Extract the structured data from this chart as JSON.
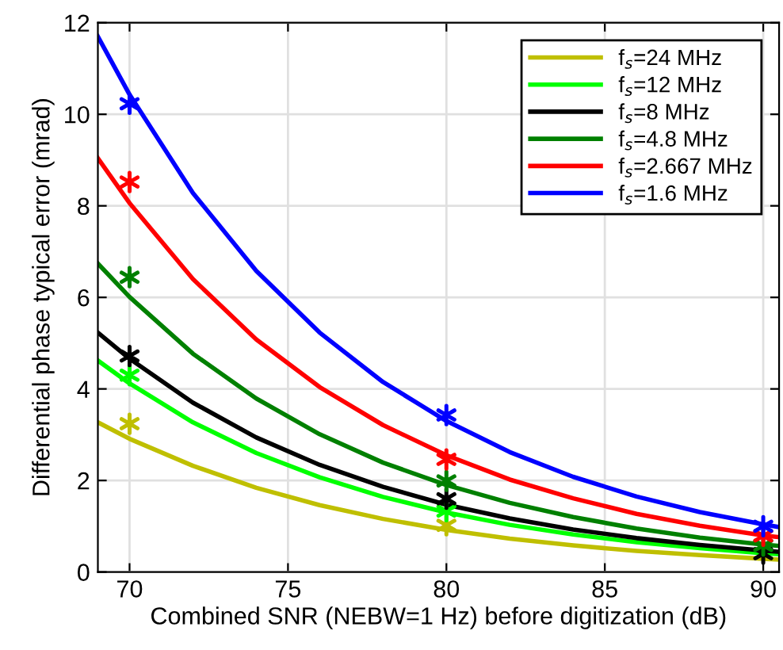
{
  "chart_data": {
    "type": "line",
    "xlabel": "Combined SNR (NEBW=1 Hz) before digitization (dB)",
    "ylabel": "Differential phase typical error (mrad)",
    "xlim": [
      69,
      90.5
    ],
    "xticks": [
      70,
      75,
      80,
      85,
      90
    ],
    "ylim": [
      0,
      12
    ],
    "yticks": [
      0,
      2,
      4,
      6,
      8,
      10,
      12
    ],
    "grid": true,
    "legend": "top right",
    "series": [
      {
        "name": "f$_{s}$=24 MHz",
        "marker": "none",
        "color": "#bfbf00",
        "x": [
          69,
          70,
          72,
          74,
          76,
          78,
          80,
          82,
          84,
          86,
          88,
          90,
          90.5
        ],
        "values": [
          3.27,
          2.91,
          2.32,
          1.84,
          1.46,
          1.16,
          0.92,
          0.73,
          0.58,
          0.46,
          0.37,
          0.29,
          0.27
        ]
      },
      {
        "name": "f$_{s}$=12 MHz",
        "marker": "none",
        "color": "#00ff00",
        "x": [
          69,
          70,
          72,
          74,
          76,
          78,
          80,
          82,
          84,
          86,
          88,
          90,
          90.5
        ],
        "values": [
          4.62,
          4.12,
          3.27,
          2.6,
          2.07,
          1.64,
          1.3,
          1.03,
          0.82,
          0.65,
          0.52,
          0.41,
          0.39
        ]
      },
      {
        "name": "f$_{s}$=8 MHz",
        "marker": "none",
        "color": "#000000",
        "x": [
          69,
          70,
          72,
          74,
          76,
          78,
          80,
          82,
          84,
          86,
          88,
          90,
          90.5
        ],
        "values": [
          5.23,
          4.66,
          3.7,
          2.94,
          2.34,
          1.86,
          1.47,
          1.17,
          0.93,
          0.74,
          0.59,
          0.47,
          0.44
        ]
      },
      {
        "name": "f$_{s}$=4.8 MHz",
        "marker": "none",
        "color": "#008000",
        "x": [
          69,
          70,
          72,
          74,
          76,
          78,
          80,
          82,
          84,
          86,
          88,
          90,
          90.5
        ],
        "values": [
          6.74,
          6.01,
          4.77,
          3.79,
          3.01,
          2.39,
          1.9,
          1.51,
          1.2,
          0.95,
          0.75,
          0.6,
          0.57
        ]
      },
      {
        "name": "f$_{s}$=2.667 MHz",
        "marker": "none",
        "color": "#ff0000",
        "x": [
          69,
          70,
          72,
          74,
          76,
          78,
          80,
          82,
          84,
          86,
          88,
          90,
          90.5
        ],
        "values": [
          9.04,
          8.06,
          6.4,
          5.08,
          4.04,
          3.21,
          2.55,
          2.02,
          1.61,
          1.27,
          1.01,
          0.8,
          0.76
        ]
      },
      {
        "name": "f$_{s}$=1.6 MHz",
        "marker": "none",
        "color": "#0000ff",
        "x": [
          69,
          70,
          72,
          74,
          76,
          78,
          80,
          82,
          84,
          86,
          88,
          90,
          90.5
        ],
        "values": [
          11.7,
          10.43,
          8.28,
          6.58,
          5.23,
          4.15,
          3.3,
          2.62,
          2.08,
          1.65,
          1.31,
          1.04,
          0.98
        ]
      },
      {
        "type": "scatter",
        "marker": "cross",
        "color": "#bfbf00",
        "x": [
          70,
          80
        ],
        "values": [
          3.24,
          1.02
        ]
      },
      {
        "type": "scatter",
        "marker": "cross",
        "color": "#00ff00",
        "x": [
          70,
          80
        ],
        "values": [
          4.3,
          1.33
        ]
      },
      {
        "type": "scatter",
        "marker": "cross",
        "color": "#000000",
        "x": [
          70,
          80,
          90
        ],
        "values": [
          4.72,
          1.6,
          0.4
        ]
      },
      {
        "type": "scatter",
        "marker": "cross",
        "color": "#008000",
        "x": [
          70,
          80,
          90
        ],
        "values": [
          6.44,
          1.99,
          0.58
        ]
      },
      {
        "type": "scatter",
        "marker": "cross",
        "color": "#ff0000",
        "x": [
          70,
          80,
          90
        ],
        "values": [
          8.52,
          2.46,
          0.79
        ]
      },
      {
        "type": "scatter",
        "marker": "cross",
        "color": "#0000ff",
        "x": [
          70,
          80,
          90
        ],
        "values": [
          10.23,
          3.43,
          1.0
        ]
      }
    ]
  }
}
